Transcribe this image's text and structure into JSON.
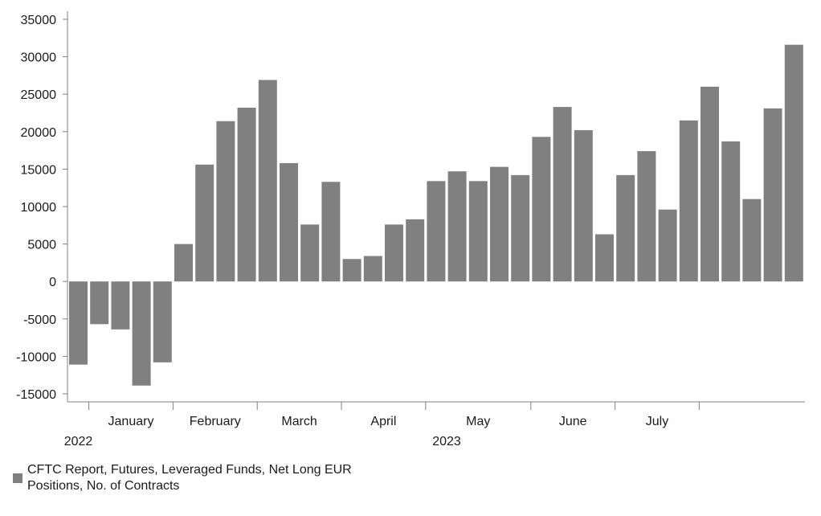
{
  "chart_data": {
    "type": "bar",
    "ylim": [
      -15000,
      35000
    ],
    "yticks": [
      35000,
      30000,
      25000,
      20000,
      15000,
      10000,
      5000,
      0,
      -5000,
      -10000,
      -15000
    ],
    "ytick_labels": [
      "35000",
      "30000",
      "25000",
      "20000",
      "15000",
      "10000",
      "5000",
      "0",
      "-5000",
      "-10000",
      "-15000"
    ],
    "x_month_labels": [
      "January",
      "February",
      "March",
      "April",
      "May",
      "June",
      "July"
    ],
    "x_year_labels": [
      "2022",
      "2023"
    ],
    "month_boundaries_after_bar": [
      0,
      4,
      8,
      12,
      16,
      21,
      25,
      29
    ],
    "month_label_centers": [
      2.5,
      6.5,
      10.5,
      14.5,
      19,
      23.5,
      27.5
    ],
    "year_label_bar_positions": [
      0,
      17.5
    ],
    "grid": false,
    "legend_position": "bottom-left",
    "series": [
      {
        "name": "CFTC Report, Futures, Leveraged Funds, Net Long EUR Positions, No. of Contracts",
        "color": "#808080",
        "values": [
          -11100,
          -5700,
          -6400,
          -13900,
          -10800,
          5000,
          15600,
          21400,
          23200,
          26900,
          15800,
          7600,
          13300,
          3000,
          3400,
          7600,
          8300,
          13400,
          14700,
          13400,
          15300,
          14200,
          19300,
          23300,
          20200,
          6300,
          14200,
          17400,
          9600,
          21500,
          26000,
          18700,
          11000,
          23100,
          31600
        ]
      }
    ]
  }
}
